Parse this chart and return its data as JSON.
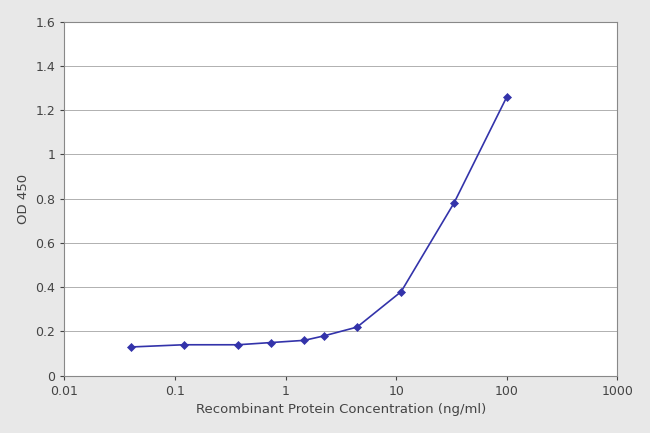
{
  "x_values": [
    0.04,
    0.12,
    0.37,
    0.74,
    1.48,
    2.22,
    4.44,
    11.1,
    33.3,
    100
  ],
  "y_values": [
    0.13,
    0.14,
    0.14,
    0.15,
    0.16,
    0.18,
    0.22,
    0.38,
    0.78,
    1.26
  ],
  "xlabel": "Recombinant Protein Concentration (ng/ml)",
  "ylabel": "OD 450",
  "xlim_log": [
    0.01,
    1000
  ],
  "ylim": [
    0,
    1.6
  ],
  "yticks": [
    0,
    0.2,
    0.4,
    0.6,
    0.8,
    1.0,
    1.2,
    1.4,
    1.6
  ],
  "xticks": [
    0.01,
    0.1,
    1,
    10,
    100,
    1000
  ],
  "xtick_labels": [
    "0.01",
    "0.1",
    "1",
    "10",
    "100",
    "1000"
  ],
  "line_color": "#3333aa",
  "marker": "D",
  "marker_size": 4,
  "line_width": 1.2,
  "figure_bg_color": "#e8e8e8",
  "plot_bg_color": "#ffffff",
  "grid_color": "#b0b0b0",
  "grid_linewidth": 0.7,
  "spine_color": "#888888",
  "tick_label_color": "#444444",
  "label_color": "#444444",
  "xlabel_fontsize": 9.5,
  "ylabel_fontsize": 9.5,
  "tick_fontsize": 9
}
